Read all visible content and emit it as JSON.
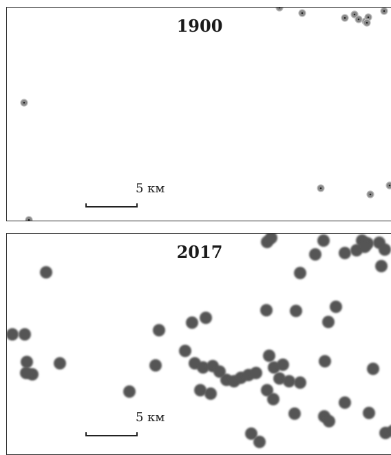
{
  "colors": {
    "dot_1900": "#8a8a8a",
    "dot_2017": "#555555",
    "frame": "#2b2b2b"
  },
  "panels": [
    {
      "id": "top",
      "year": "1900",
      "scale_label": "5 км",
      "style": "ringed-small-dots"
    },
    {
      "id": "bottom",
      "year": "2017",
      "scale_label": "5 км",
      "style": "large-blurred-dots"
    }
  ]
}
